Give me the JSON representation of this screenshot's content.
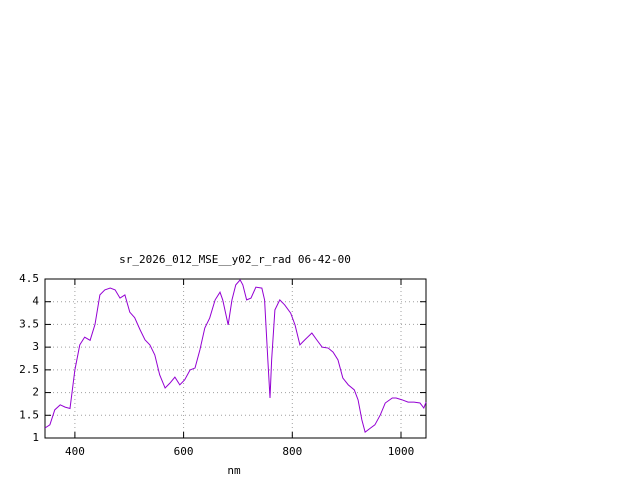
{
  "chart_data": {
    "type": "line",
    "title": "sr_2026_012_MSE__y02_r_rad 06-42-00",
    "x_label": "nm",
    "x": [
      345,
      354,
      363,
      373,
      382,
      391,
      400,
      409,
      418,
      428,
      437,
      446,
      455,
      465,
      474,
      483,
      492,
      501,
      510,
      520,
      529,
      538,
      547,
      556,
      566,
      575,
      584,
      593,
      602,
      612,
      621,
      630,
      639,
      648,
      658,
      667,
      672,
      682,
      689,
      696,
      704,
      709,
      716,
      724,
      733,
      744,
      749,
      755,
      759,
      762,
      768,
      777,
      786,
      797,
      805,
      814,
      823,
      836,
      845,
      855,
      866,
      875,
      884,
      893,
      903,
      914,
      921,
      928,
      934,
      944,
      952,
      962,
      971,
      984,
      991,
      1002,
      1013,
      1024,
      1035,
      1042,
      1046
    ],
    "series": [
      {
        "color": "#9400d3",
        "values": [
          1.22,
          1.29,
          1.62,
          1.73,
          1.68,
          1.65,
          2.5,
          3.05,
          3.22,
          3.15,
          3.5,
          4.15,
          4.26,
          4.3,
          4.26,
          4.08,
          4.15,
          3.77,
          3.65,
          3.38,
          3.16,
          3.05,
          2.83,
          2.39,
          2.1,
          2.21,
          2.34,
          2.17,
          2.28,
          2.5,
          2.54,
          2.94,
          3.42,
          3.64,
          4.04,
          4.21,
          4.04,
          3.49,
          4.04,
          4.37,
          4.48,
          4.37,
          4.04,
          4.08,
          4.32,
          4.3,
          4.04,
          2.72,
          1.88,
          2.72,
          3.82,
          4.04,
          3.93,
          3.75,
          3.49,
          3.05,
          3.16,
          3.31,
          3.16,
          3.0,
          2.98,
          2.89,
          2.72,
          2.32,
          2.17,
          2.06,
          1.84,
          1.4,
          1.13,
          1.22,
          1.29,
          1.51,
          1.77,
          1.88,
          1.88,
          1.84,
          1.79,
          1.79,
          1.77,
          1.66,
          1.79
        ]
      }
    ],
    "xlim": [
      345,
      1046
    ],
    "xticks": [
      400,
      600,
      800,
      1000
    ],
    "ylim": [
      1,
      4.5
    ],
    "yticks": [
      1,
      1.5,
      2,
      2.5,
      3,
      3.5,
      4,
      4.5
    ],
    "grid": true
  }
}
